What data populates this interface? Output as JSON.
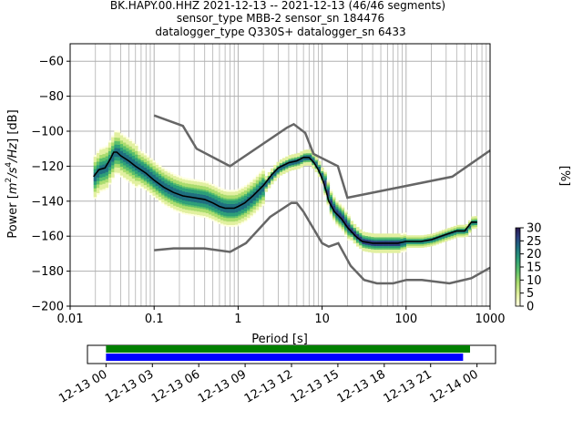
{
  "title": {
    "line1": "BK.HAPY.00.HHZ   2021-12-13 -- 2021-12-13  (46/46 segments)",
    "line2": "sensor_type MBB-2 sensor_sn 184476",
    "line3": "datalogger_type Q330S+ datalogger_sn 6433"
  },
  "chart_data": [
    {
      "type": "heatmap",
      "xlabel": "Period [s]",
      "ylabel_parts": {
        "pre": "Power [",
        "m": "m",
        "two": "2",
        "s": "/s",
        "four": "4",
        "hz": "/Hz",
        "post": "] [dB]"
      },
      "x_scale": "log",
      "xlim": [
        0.01,
        1000
      ],
      "ylim": [
        -200,
        -50
      ],
      "xtick_values": [
        0.01,
        0.1,
        1,
        10,
        100,
        1000
      ],
      "xtick_labels": [
        "0.01",
        "0.1",
        "1",
        "10",
        "100",
        "1000"
      ],
      "ytick_values": [
        -200,
        -180,
        -160,
        -140,
        -120,
        -100,
        -80,
        -60
      ],
      "ytick_labels": [
        "−200",
        "−180",
        "−160",
        "−140",
        "−120",
        "−100",
        "−80",
        "−60"
      ],
      "grid": true,
      "colorbar": {
        "label": "[%]",
        "range": [
          0,
          30
        ],
        "tick_values": [
          0,
          5,
          10,
          15,
          20,
          25,
          30
        ],
        "tick_labels": [
          "0",
          "5",
          "10",
          "15",
          "20",
          "25",
          "30"
        ]
      },
      "mode_curve": {
        "x": [
          0.019,
          0.022,
          0.026,
          0.03,
          0.033,
          0.036,
          0.04,
          0.05,
          0.06,
          0.08,
          0.1,
          0.13,
          0.17,
          0.22,
          0.3,
          0.4,
          0.5,
          0.6,
          0.7,
          0.8,
          0.9,
          1.0,
          1.2,
          1.5,
          2,
          2.5,
          3,
          4,
          5,
          6,
          7,
          8,
          9,
          10,
          11,
          12,
          14,
          17,
          20,
          25,
          30,
          40,
          50,
          60,
          70,
          80,
          100,
          150,
          200,
          300,
          400,
          500,
          600,
          700
        ],
        "y": [
          -126,
          -122,
          -121,
          -116,
          -112,
          -112,
          -114,
          -117,
          -120,
          -124,
          -128,
          -132,
          -135,
          -137,
          -138,
          -139,
          -141,
          -143,
          -144,
          -144,
          -144,
          -143,
          -141,
          -137,
          -131,
          -125,
          -121,
          -118,
          -117,
          -115,
          -115,
          -118,
          -122,
          -127,
          -133,
          -140,
          -146,
          -150,
          -155,
          -160,
          -163,
          -164,
          -164,
          -164,
          -164,
          -164,
          -163,
          -163,
          -162,
          -159,
          -157,
          -157,
          -152,
          -152
        ]
      },
      "nlnm": {
        "x": [
          0.1,
          0.17,
          0.4,
          0.8,
          1.24,
          2.4,
          4.3,
          5.0,
          6.0,
          10.0,
          12.0,
          15.6,
          21.9,
          31.6,
          45.0,
          70.0,
          101,
          154,
          328,
          600,
          1000
        ],
        "y": [
          -168,
          -167,
          -167,
          -169,
          -164,
          -149,
          -141,
          -141,
          -146,
          -164,
          -166,
          -164,
          -177,
          -185,
          -187,
          -187,
          -185,
          -185,
          -187,
          -184,
          -178
        ]
      },
      "nhnm": {
        "x": [
          0.1,
          0.22,
          0.32,
          0.8,
          3.8,
          4.6,
          6.3,
          7.9,
          15.4,
          20.0,
          354.8,
          1000
        ],
        "y": [
          -91,
          -97,
          -110,
          -120,
          -98,
          -96,
          -101,
          -113,
          -120,
          -138,
          -126,
          -111
        ]
      }
    },
    {
      "type": "timeline",
      "xtick_labels": [
        "12-13 00",
        "12-13 03",
        "12-13 06",
        "12-13 09",
        "12-13 12",
        "12-13 15",
        "12-13 18",
        "12-13 21",
        "12-14 00"
      ],
      "x_range_hours": [
        -1.2,
        25.2
      ],
      "series": [
        {
          "start_hour": 0,
          "end_hour": 23.55,
          "color": "#008000"
        },
        {
          "start_hour": 0,
          "end_hour": 23.1,
          "color": "#0000ff"
        }
      ]
    }
  ],
  "colors": {
    "nlnm_nhnm": "#666666",
    "mode": "#000000",
    "grid": "#b0b0b0"
  }
}
